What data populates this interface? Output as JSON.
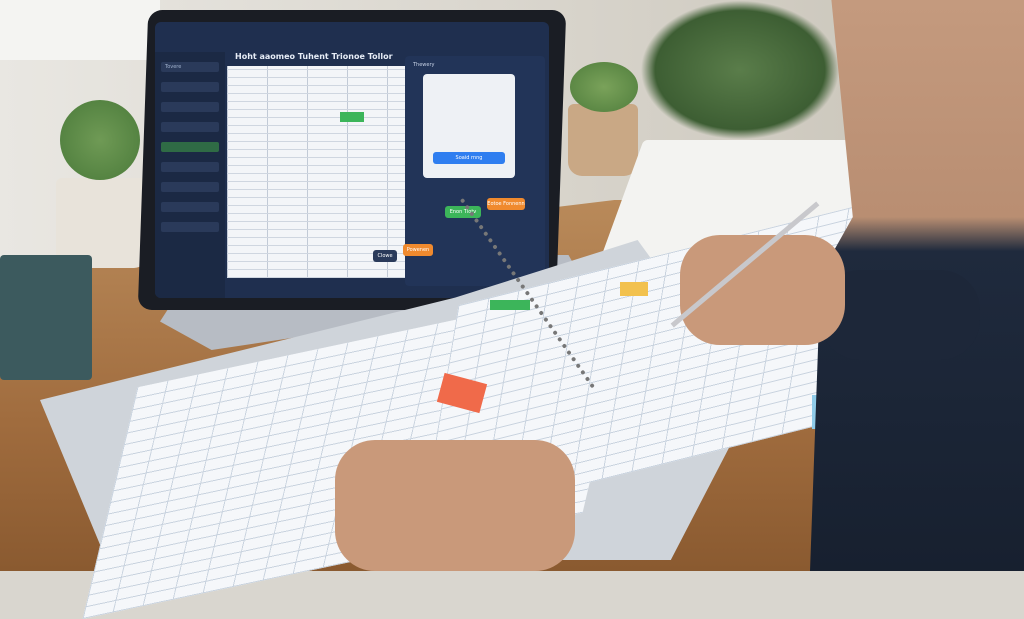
{
  "laptop": {
    "sidebar_back": "Tovere",
    "title": "Hoht aaomeo Tuhent Trionoe Tollor",
    "panel_title": "Thewery",
    "primary_button": "Soaid rnng",
    "green_button": "Enon Tlotv",
    "orange_button": "Eotoe Fonnenn",
    "footer_close": "Clowe",
    "footer_action": "Powenen"
  },
  "colors": {
    "screen": "#1f2f4f",
    "green": "#3cb55a",
    "orange": "#f08a2e",
    "blue": "#2f7ef0",
    "desk": "#a06c3e"
  }
}
